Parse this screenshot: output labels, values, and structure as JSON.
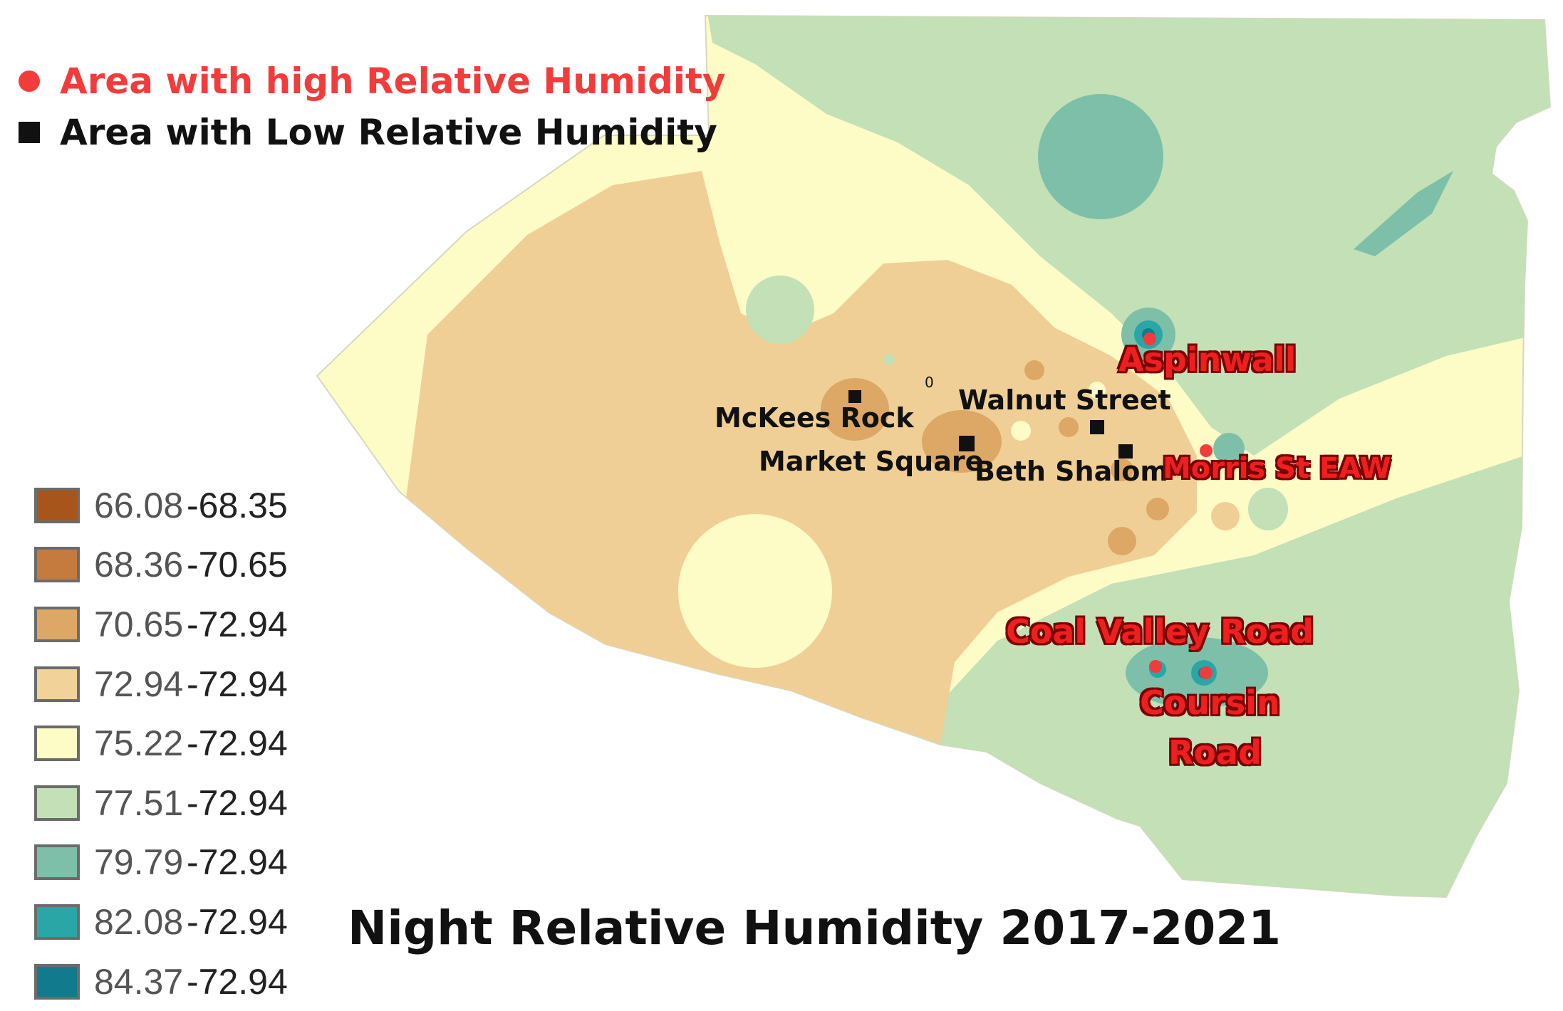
{
  "title": "Night Relative Humidity 2017-2021",
  "legend_top": {
    "high": {
      "label": "Area with high Relative Humidity",
      "symbol": "circle",
      "color": "#f23c3c"
    },
    "low": {
      "label": "Area with Low Relative Humidity",
      "symbol": "square",
      "color": "#111111"
    }
  },
  "ramp": [
    {
      "from": "66.08",
      "to": "-68.35",
      "color": "#a8551b"
    },
    {
      "from": "68.36",
      "to": "-70.65",
      "color": "#c47b3d"
    },
    {
      "from": "70.65",
      "to": "-72.94",
      "color": "#dda765"
    },
    {
      "from": "72.94",
      "to": "-72.94",
      "color": "#f1d298"
    },
    {
      "from": "75.22",
      "to": "-72.94",
      "color": "#fdfbc6"
    },
    {
      "from": "77.51",
      "to": "-72.94",
      "color": "#c3e0b7"
    },
    {
      "from": "79.79",
      "to": "-72.94",
      "color": "#7dbfa9"
    },
    {
      "from": "82.08",
      "to": "-72.94",
      "color": "#2aa6a6"
    },
    {
      "from": "84.37",
      "to": "-72.94",
      "color": "#117a8c"
    }
  ],
  "places_low": [
    "McKees Rock",
    "Walnut Street",
    "Market Square",
    "Beth Shalom"
  ],
  "places_high": [
    "Aspinwall",
    "Morris St EAW",
    "Coal Valley Road",
    "Coursin",
    "Road"
  ],
  "stray_label": "0"
}
